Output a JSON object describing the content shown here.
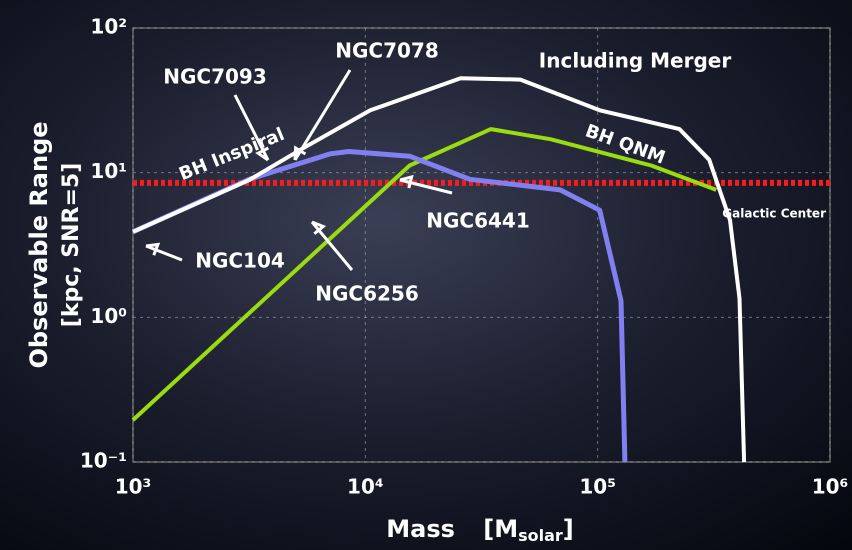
{
  "chart_data": {
    "type": "line",
    "y_label": "Observable Range",
    "y_unit": "[kpc, SNR=5]",
    "x_label_parts": [
      "Mass",
      "[M",
      "solar",
      "]"
    ],
    "log_x": true,
    "log_y": true,
    "grid": true,
    "xlim": [
      1000,
      1000000
    ],
    "ylim": [
      0.1,
      100
    ],
    "xticks": [
      {
        "value": 1000,
        "label": "10³"
      },
      {
        "value": 10000,
        "label": "10⁴"
      },
      {
        "value": 100000,
        "label": "10⁵"
      },
      {
        "value": 1000000,
        "label": "10⁶"
      }
    ],
    "yticks": [
      {
        "value": 0.1,
        "label": "10⁻¹"
      },
      {
        "value": 1,
        "label": "10⁰"
      },
      {
        "value": 10,
        "label": "10¹"
      },
      {
        "value": 100,
        "label": "10²"
      }
    ],
    "series": [
      {
        "name": "Including Merger",
        "color": "#ffffff",
        "x": [
          1000,
          3162,
          5250,
          10500,
          25700,
          46500,
          102000,
          225000,
          302000,
          371000,
          408000,
          427000
        ],
        "values": [
          3.9,
          8.9,
          14.4,
          27,
          45,
          44,
          27,
          20,
          12.3,
          4.7,
          1.35,
          0.1
        ]
      },
      {
        "name": "BH Inspiral",
        "color": "#8080f0",
        "x": [
          1000,
          3162,
          7080,
          8500,
          15500,
          28200,
          69000,
          102000,
          126000,
          131000
        ],
        "values": [
          3.9,
          9,
          13.5,
          14,
          13,
          9,
          7.6,
          5.5,
          1.3,
          0.1
        ]
      },
      {
        "name": "BH QNM",
        "color": "#99dd11",
        "x": [
          1000,
          15500,
          34700,
          63000,
          170000,
          324000
        ],
        "values": [
          0.195,
          11.2,
          20,
          17,
          11.2,
          7.6
        ]
      },
      {
        "name": "Galactic Center",
        "color": "#ff1a1a",
        "x": [
          1000,
          1000000
        ],
        "values": [
          8.5,
          8.5
        ]
      }
    ],
    "annotations": [
      "NGC7093",
      "NGC7078",
      "NGC104",
      "NGC6441",
      "NGC6256"
    ]
  }
}
